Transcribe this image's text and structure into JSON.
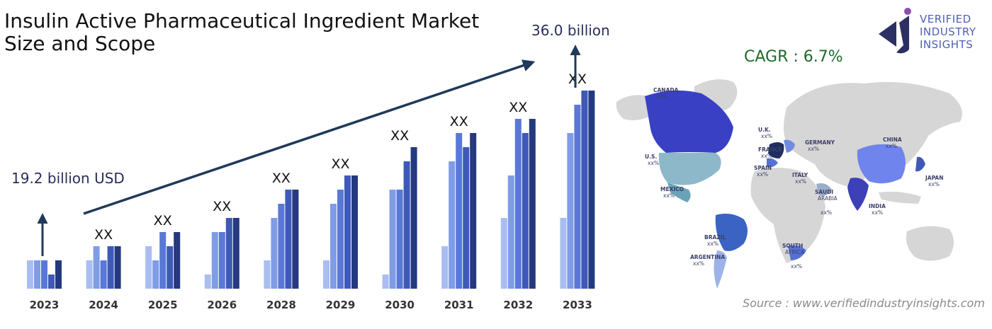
{
  "title_line1": "Insulin Active Pharmaceutical Ingredient Market",
  "title_line2": "Size and Scope",
  "cagr": "CAGR : 6.7%",
  "logo": {
    "line1": "VERIFIED",
    "line2": "INDUSTRY",
    "line3": "INSIGHTS"
  },
  "source": "Source : www.verifiedindustryinsights.com",
  "colors": [
    "#a9bdf0",
    "#7f9ce6",
    "#5a78d6",
    "#3e59b8",
    "#24397f"
  ],
  "chart_data": {
    "type": "bar",
    "categories": [
      "2023",
      "2024",
      "2025",
      "2026",
      "2028",
      "2029",
      "2030",
      "2031",
      "2032",
      "2033"
    ],
    "bar_labels": [
      "",
      "XX",
      "XX",
      "XX",
      "XX",
      "XX",
      "XX",
      "XX",
      "XX",
      "XX"
    ],
    "bar_group_levels": [
      [
        2,
        2,
        2,
        1,
        2
      ],
      [
        2,
        3,
        2,
        3,
        3
      ],
      [
        3,
        2,
        4,
        3,
        4
      ],
      [
        1,
        4,
        4,
        5,
        5
      ],
      [
        2,
        5,
        6,
        7,
        7
      ],
      [
        2,
        6,
        7,
        8,
        8
      ],
      [
        1,
        7,
        7,
        9,
        10
      ],
      [
        3,
        9,
        11,
        10,
        11
      ],
      [
        5,
        8,
        12,
        11,
        12
      ],
      [
        5,
        11,
        13,
        14,
        14
      ]
    ],
    "start_annotation": "19.2 billion USD",
    "end_annotation": "36.0 billion USD",
    "cagr": "6.7%"
  },
  "map": {
    "regions": [
      {
        "name": "CANADA",
        "value": "xx%"
      },
      {
        "name": "U.S.",
        "value": "xx%"
      },
      {
        "name": "MEXICO",
        "value": "xx%"
      },
      {
        "name": "BRAZIL",
        "value": "xx%"
      },
      {
        "name": "ARGENTINA",
        "value": "xx%"
      },
      {
        "name": "U.K.",
        "value": "xx%"
      },
      {
        "name": "FRANCE",
        "value": "xx%"
      },
      {
        "name": "SPAIN",
        "value": "xx%"
      },
      {
        "name": "GERMANY",
        "value": "xx%"
      },
      {
        "name": "ITALY",
        "value": "xx%"
      },
      {
        "name": "SAUDI",
        "value": "ARABIA"
      },
      {
        "name": "",
        "value": "xx%"
      },
      {
        "name": "SOUTH",
        "value": "AFRICA"
      },
      {
        "name": "",
        "value": "xx%"
      },
      {
        "name": "CHINA",
        "value": "xx%"
      },
      {
        "name": "INDIA",
        "value": "xx%"
      },
      {
        "name": "JAPAN",
        "value": "xx%"
      }
    ]
  }
}
